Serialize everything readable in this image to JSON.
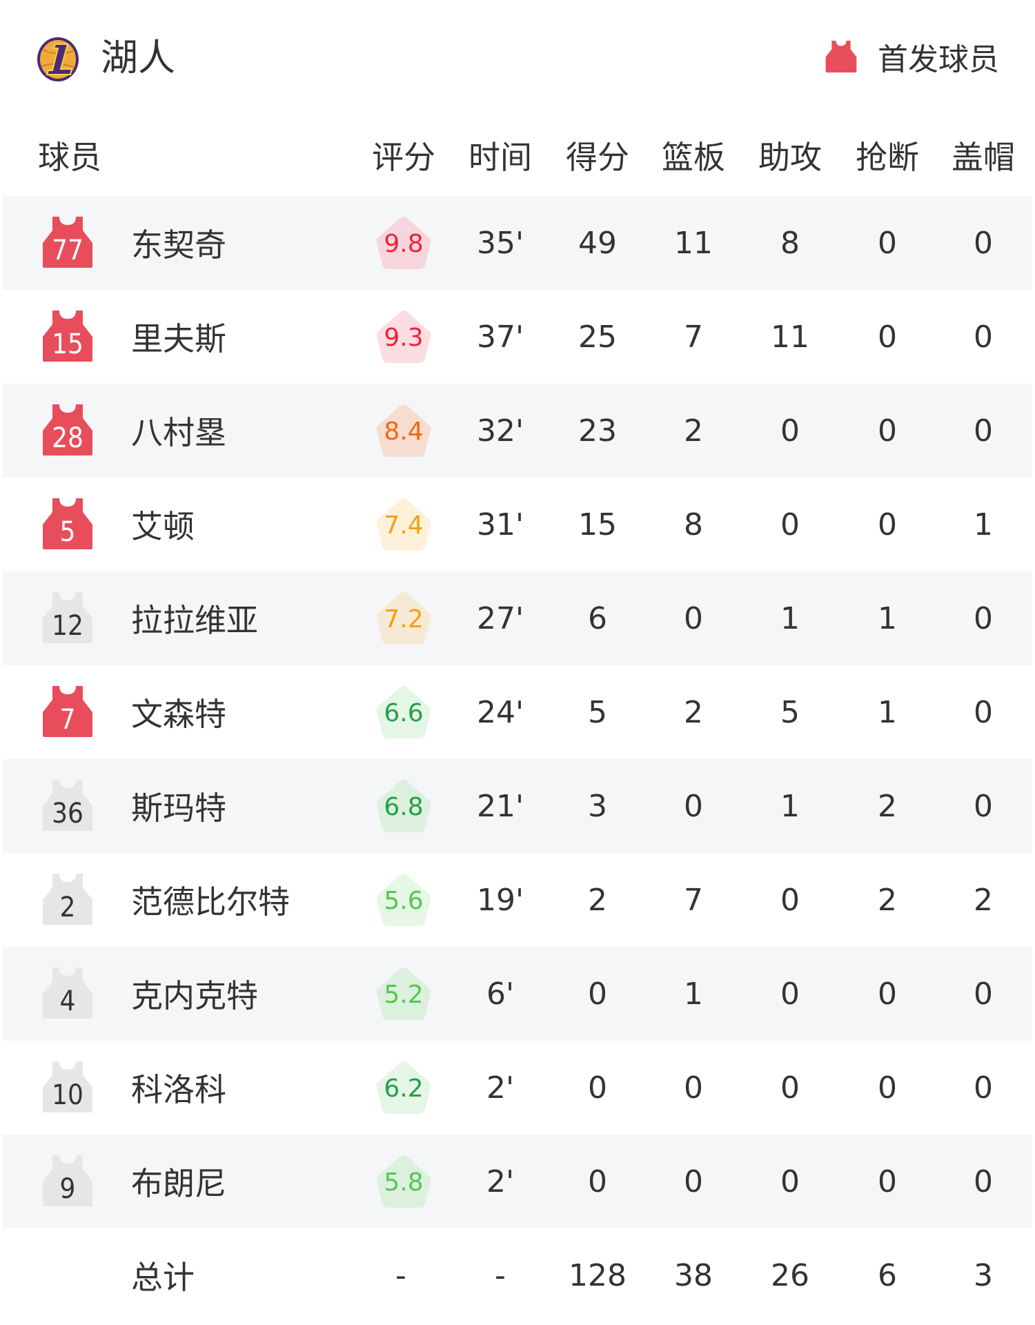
{
  "team": {
    "name": "湖人",
    "logo": "lakers-logo"
  },
  "legend": {
    "label": "首发球员",
    "icon": "jersey-icon",
    "starter_color": "#e84d5b",
    "bench_color": "#e6e6e6"
  },
  "columns": [
    "球员",
    "评分",
    "时间",
    "得分",
    "篮板",
    "助攻",
    "抢断",
    "盖帽"
  ],
  "players": [
    {
      "number": "77",
      "name": "东契奇",
      "starter": true,
      "rating": "9.8",
      "rating_color": "#f0213a",
      "rating_bg": "#f7d5dc",
      "time": "35'",
      "pts": "49",
      "reb": "11",
      "ast": "8",
      "stl": "0",
      "blk": "0"
    },
    {
      "number": "15",
      "name": "里夫斯",
      "starter": true,
      "rating": "9.3",
      "rating_color": "#f0213a",
      "rating_bg": "#fbdde2",
      "time": "37'",
      "pts": "25",
      "reb": "7",
      "ast": "11",
      "stl": "0",
      "blk": "0"
    },
    {
      "number": "28",
      "name": "八村塁",
      "starter": true,
      "rating": "8.4",
      "rating_color": "#f5670f",
      "rating_bg": "#f5ddd0",
      "time": "32'",
      "pts": "23",
      "reb": "2",
      "ast": "0",
      "stl": "0",
      "blk": "0"
    },
    {
      "number": "5",
      "name": "艾顿",
      "starter": true,
      "rating": "7.4",
      "rating_color": "#f5a00f",
      "rating_bg": "#fef1da",
      "time": "31'",
      "pts": "15",
      "reb": "8",
      "ast": "0",
      "stl": "0",
      "blk": "1"
    },
    {
      "number": "12",
      "name": "拉拉维亚",
      "starter": false,
      "rating": "7.2",
      "rating_color": "#f5a00f",
      "rating_bg": "#f6ead6",
      "time": "27'",
      "pts": "6",
      "reb": "0",
      "ast": "1",
      "stl": "1",
      "blk": "0"
    },
    {
      "number": "7",
      "name": "文森特",
      "starter": true,
      "rating": "6.6",
      "rating_color": "#23a046",
      "rating_bg": "#e5f5e6",
      "time": "24'",
      "pts": "5",
      "reb": "2",
      "ast": "5",
      "stl": "1",
      "blk": "0"
    },
    {
      "number": "36",
      "name": "斯玛特",
      "starter": false,
      "rating": "6.8",
      "rating_color": "#23a046",
      "rating_bg": "#ddf0df",
      "time": "21'",
      "pts": "3",
      "reb": "0",
      "ast": "1",
      "stl": "2",
      "blk": "0"
    },
    {
      "number": "2",
      "name": "范德比尔特",
      "starter": false,
      "rating": "5.6",
      "rating_color": "#52c852",
      "rating_bg": "#e6f7e4",
      "time": "19'",
      "pts": "2",
      "reb": "7",
      "ast": "0",
      "stl": "2",
      "blk": "2"
    },
    {
      "number": "4",
      "name": "克内克特",
      "starter": false,
      "rating": "5.2",
      "rating_color": "#52c852",
      "rating_bg": "#ddf0dd",
      "time": "6'",
      "pts": "0",
      "reb": "1",
      "ast": "0",
      "stl": "0",
      "blk": "0"
    },
    {
      "number": "10",
      "name": "科洛科",
      "starter": false,
      "rating": "6.2",
      "rating_color": "#23a046",
      "rating_bg": "#e5f5e6",
      "time": "2'",
      "pts": "0",
      "reb": "0",
      "ast": "0",
      "stl": "0",
      "blk": "0"
    },
    {
      "number": "9",
      "name": "布朗尼",
      "starter": false,
      "rating": "5.8",
      "rating_color": "#52c852",
      "rating_bg": "#ddf0dd",
      "time": "2'",
      "pts": "0",
      "reb": "0",
      "ast": "0",
      "stl": "0",
      "blk": "0"
    }
  ],
  "totals": {
    "label": "总计",
    "rating": "-",
    "time": "-",
    "pts": "128",
    "reb": "38",
    "ast": "26",
    "stl": "6",
    "blk": "3"
  }
}
